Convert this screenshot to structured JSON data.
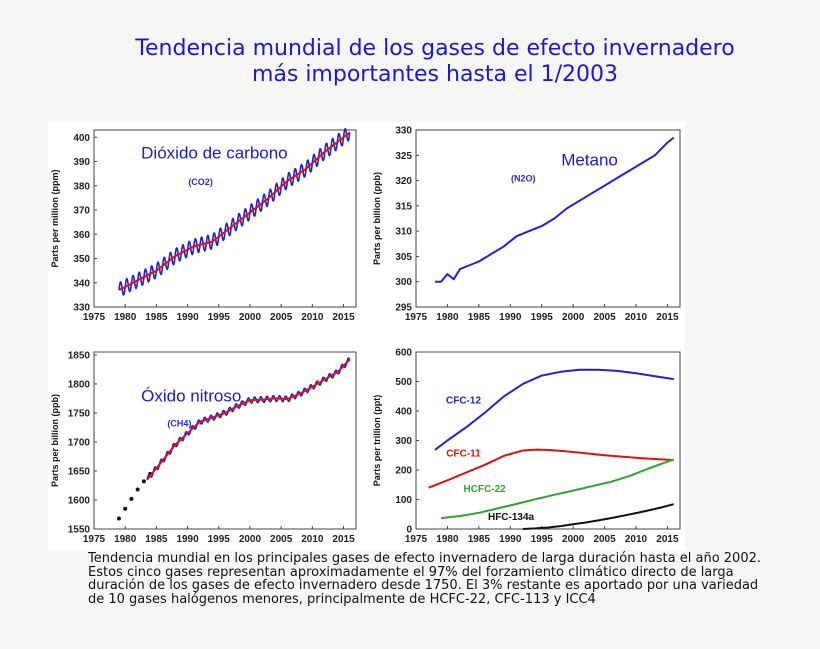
{
  "title": {
    "line1": "Tendencia mundial de los gases de efecto invernadero",
    "line2": "más importantes hasta el 1/2003"
  },
  "caption": [
    "Tendencia mundial en los principales gases de efecto invernadero de larga duración hasta el año 2002.",
    "Estos cinco gases representan aproximadamente el 97% del forzamiento climático directo de larga",
    "duración de los gases de efecto invernadero desde 1750. El 3% restante es aportado por una variedad",
    "de 10 gases halógenos menores, principalmente de HCFC-22, CFC-113 y ICC4"
  ],
  "colors": {
    "title": "#1a1acc",
    "blue": "#2222cc",
    "red": "#dd1111",
    "green": "#33a033",
    "black": "#111111"
  },
  "chart_data": [
    {
      "type": "line",
      "title": "Dióxido de carbono",
      "subtitle": "(CO2)",
      "ylabel": "Parts per million (ppm)",
      "xlim": [
        1975,
        2017
      ],
      "ylim": [
        330,
        403
      ],
      "xticks": [
        1975,
        1980,
        1985,
        1990,
        1995,
        2000,
        2005,
        2010,
        2015
      ],
      "yticks": [
        330,
        340,
        350,
        360,
        370,
        380,
        390,
        400
      ],
      "seasonal_amplitude": 3,
      "series": [
        {
          "color": "#2222cc",
          "style": "seasonal",
          "x": [
            1979,
            1982,
            1985,
            1988,
            1991,
            1994,
            1997,
            2000,
            2003,
            2006,
            2009,
            2012,
            2015,
            2016
          ],
          "values": [
            337,
            341,
            345,
            351,
            355,
            357,
            363,
            369,
            375,
            382,
            387,
            394,
            400,
            402
          ]
        },
        {
          "color": "#dd1111",
          "style": "line",
          "x": [
            1979,
            1982,
            1985,
            1988,
            1991,
            1994,
            1997,
            2000,
            2003,
            2006,
            2009,
            2012,
            2015,
            2016
          ],
          "values": [
            337,
            341,
            345,
            351,
            355,
            357,
            363,
            369,
            375,
            382,
            387,
            394,
            400,
            402
          ]
        }
      ]
    },
    {
      "type": "line",
      "title": "Metano",
      "subtitle": "(N2O)",
      "ylabel": "Parts per billion (ppb)",
      "xlim": [
        1975,
        2017
      ],
      "ylim": [
        295,
        330
      ],
      "xticks": [
        1975,
        1980,
        1985,
        1990,
        1995,
        2000,
        2005,
        2010,
        2015
      ],
      "yticks": [
        295,
        300,
        305,
        310,
        315,
        320,
        325,
        330
      ],
      "series": [
        {
          "color": "#2222cc",
          "style": "line",
          "x": [
            1978,
            1979,
            1980,
            1981,
            1982,
            1983,
            1985,
            1987,
            1989,
            1991,
            1993,
            1995,
            1997,
            1999,
            2001,
            2003,
            2005,
            2007,
            2009,
            2011,
            2013,
            2015,
            2016
          ],
          "values": [
            300,
            300,
            301.5,
            300.5,
            302.5,
            303,
            304,
            305.5,
            307,
            309,
            310,
            311,
            312.5,
            314.5,
            316,
            317.5,
            319,
            320.5,
            322,
            323.5,
            325,
            327.5,
            328.5
          ]
        }
      ]
    },
    {
      "type": "line",
      "title": "Óxido nitroso",
      "subtitle": "(CH4)",
      "ylabel": "Parts per billion (ppb)",
      "xlim": [
        1975,
        2017
      ],
      "ylim": [
        1550,
        1855
      ],
      "xticks": [
        1975,
        1980,
        1985,
        1990,
        1995,
        2000,
        2005,
        2010,
        2015
      ],
      "yticks": [
        1550,
        1600,
        1650,
        1700,
        1750,
        1800,
        1850
      ],
      "seasonal_amplitude": 5,
      "series": [
        {
          "color": "#111111",
          "style": "dots",
          "x": [
            1979,
            1980,
            1981,
            1982,
            1983,
            1984
          ],
          "values": [
            1568,
            1585,
            1602,
            1618,
            1632,
            1645
          ]
        },
        {
          "color": "#2222cc",
          "style": "seasonal",
          "x": [
            1983.5,
            1986,
            1988,
            1990,
            1992,
            1994,
            1996,
            1998,
            2000,
            2002,
            2004,
            2006,
            2008,
            2010,
            2012,
            2014,
            2016
          ],
          "values": [
            1635,
            1668,
            1695,
            1715,
            1735,
            1742,
            1750,
            1762,
            1772,
            1773,
            1775,
            1774,
            1783,
            1795,
            1808,
            1820,
            1842
          ]
        },
        {
          "color": "#dd1111",
          "style": "line",
          "x": [
            1983.5,
            1986,
            1988,
            1990,
            1992,
            1994,
            1996,
            1998,
            2000,
            2002,
            2004,
            2006,
            2008,
            2010,
            2012,
            2014,
            2016
          ],
          "values": [
            1635,
            1668,
            1695,
            1715,
            1735,
            1742,
            1750,
            1762,
            1772,
            1773,
            1775,
            1774,
            1783,
            1795,
            1808,
            1820,
            1842
          ]
        }
      ]
    },
    {
      "type": "line",
      "title": "",
      "subtitle": "",
      "ylabel": "Parts per trillion (ppt)",
      "xlim": [
        1975,
        2017
      ],
      "ylim": [
        0,
        600
      ],
      "xticks": [
        1975,
        1980,
        1985,
        1990,
        1995,
        2000,
        2005,
        2010,
        2015
      ],
      "yticks": [
        0,
        100,
        200,
        300,
        400,
        500,
        600
      ],
      "series": [
        {
          "name": "CFC-12",
          "color": "#2222cc",
          "style": "line",
          "x": [
            1978,
            1980,
            1983,
            1986,
            1989,
            1992,
            1995,
            1998,
            2001,
            2004,
            2007,
            2010,
            2013,
            2016
          ],
          "values": [
            268,
            300,
            345,
            395,
            450,
            492,
            520,
            533,
            540,
            540,
            536,
            528,
            518,
            508
          ]
        },
        {
          "name": "CFC-11",
          "color": "#dd1111",
          "style": "line",
          "x": [
            1977,
            1980,
            1983,
            1986,
            1989,
            1992,
            1994,
            1996,
            1999,
            2002,
            2005,
            2008,
            2011,
            2014,
            2016
          ],
          "values": [
            140,
            165,
            192,
            218,
            248,
            266,
            269,
            268,
            263,
            257,
            250,
            245,
            240,
            236,
            234
          ]
        },
        {
          "name": "HCFC-22",
          "color": "#33a033",
          "style": "line",
          "x": [
            1979,
            1982,
            1985,
            1988,
            1991,
            1994,
            1997,
            2000,
            2003,
            2006,
            2009,
            2012,
            2015,
            2016
          ],
          "values": [
            37,
            44,
            55,
            70,
            85,
            101,
            116,
            130,
            145,
            160,
            180,
            205,
            228,
            236
          ]
        },
        {
          "name": "HFC-134a",
          "color": "#111111",
          "style": "line",
          "x": [
            1992,
            1994,
            1996,
            1998,
            2000,
            2002,
            2004,
            2006,
            2008,
            2010,
            2012,
            2014,
            2016
          ],
          "values": [
            0,
            2,
            5,
            10,
            16,
            22,
            29,
            37,
            45,
            54,
            63,
            73,
            84
          ]
        }
      ]
    }
  ]
}
